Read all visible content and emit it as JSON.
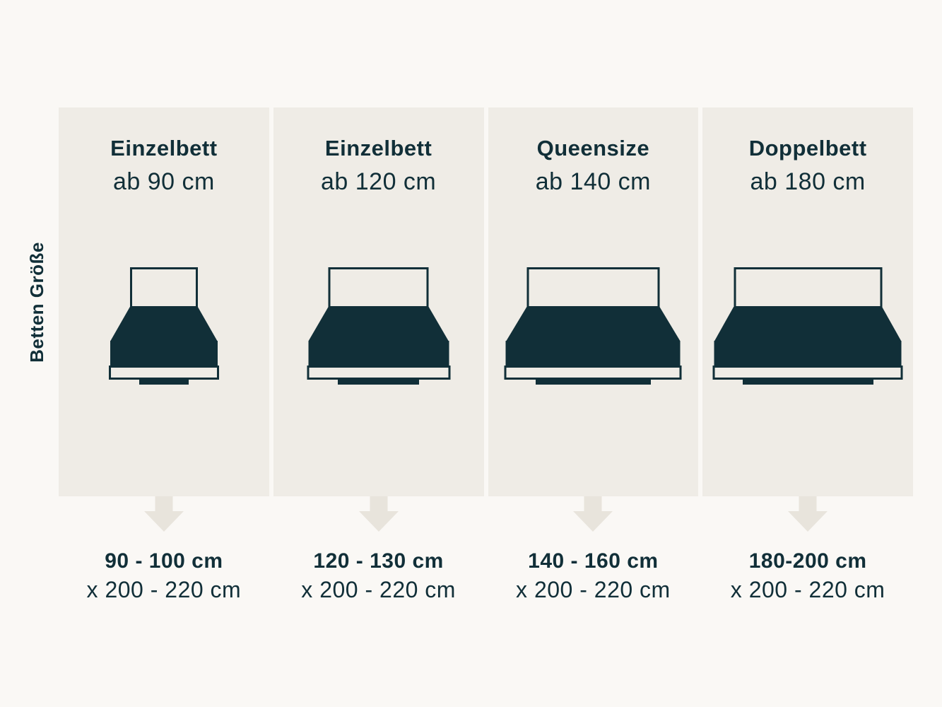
{
  "title_label": "Betten Größe",
  "colors": {
    "background": "#FAF8F5",
    "column_bg": "#EFECE6",
    "arrow": "#E8E4DC",
    "ink": "#112F38"
  },
  "columns": [
    {
      "title": "Einzelbett",
      "subtitle": "ab 90 cm",
      "width_range": "90 - 100 cm",
      "length_range": "x 200 - 220 cm",
      "bed": {
        "headboard_width": 96,
        "base_width": 152,
        "foot_width": 70
      }
    },
    {
      "title": "Einzelbett",
      "subtitle": "ab 120 cm",
      "width_range": "120 - 130 cm",
      "length_range": "x 200 - 220 cm",
      "bed": {
        "headboard_width": 142,
        "base_width": 199,
        "foot_width": 115
      }
    },
    {
      "title": "Queensize",
      "subtitle": "ab 140 cm",
      "width_range": "140 - 160 cm",
      "length_range": "x 200 - 220 cm",
      "bed": {
        "headboard_width": 188,
        "base_width": 247,
        "foot_width": 163
      }
    },
    {
      "title": "Doppelbett",
      "subtitle": "ab 180 cm",
      "width_range": "180-200 cm",
      "length_range": "x 200 - 220 cm",
      "bed": {
        "headboard_width": 210,
        "base_width": 265,
        "foot_width": 185
      }
    }
  ]
}
